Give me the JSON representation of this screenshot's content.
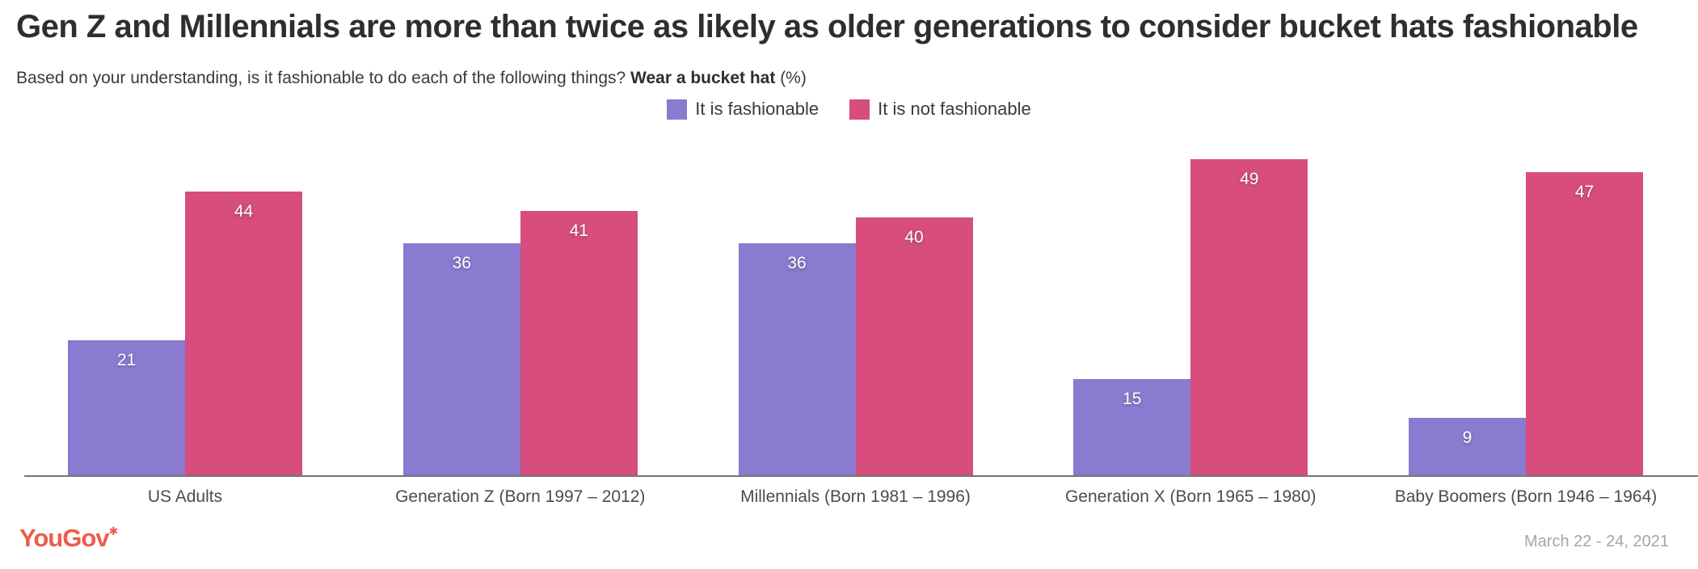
{
  "title": "Gen Z and Millennials are more than twice as likely as older generations to consider bucket hats fashionable",
  "subtitle": {
    "prefix": "Based on your understanding, is it fashionable to do each of the following things? ",
    "bold_text": "Wear a bucket hat",
    "suffix": " (%)"
  },
  "legend": [
    {
      "label": "It is fashionable",
      "color": "#8a7ad0"
    },
    {
      "label": "It is not fashionable",
      "color": "#d64d7e"
    }
  ],
  "colors": {
    "fashionable": "#8a7ad0",
    "not_fashionable": "#d64d7e",
    "title_text": "#2e2e31",
    "axis_line": "#757575",
    "brand_logo": "#ee5c4b",
    "date_text": "#a8a2b2"
  },
  "chart_data": {
    "type": "bar",
    "categories": [
      "US Adults",
      "Generation Z (Born 1997 – 2012)",
      "Millennials (Born 1981 – 1996)",
      "Generation X (Born 1965 – 1980)",
      "Baby Boomers (Born 1946 – 1964)"
    ],
    "series": [
      {
        "name": "It is fashionable",
        "color": "#8a7ad0",
        "values": [
          21,
          36,
          36,
          15,
          9
        ]
      },
      {
        "name": "It is not fashionable",
        "color": "#d64d7e",
        "values": [
          44,
          41,
          40,
          49,
          47
        ]
      }
    ],
    "title": "Gen Z and Millennials are more than twice as likely as older generations to consider bucket hats fashionable",
    "xlabel": "",
    "ylabel": "",
    "ylim": [
      0,
      49
    ],
    "grid": false,
    "legend_position": "top-center",
    "value_labels": "inside-top-white"
  },
  "footer": {
    "brand": "YouGov",
    "brand_mark": "✱",
    "date_range": "March 22 - 24, 2021"
  }
}
